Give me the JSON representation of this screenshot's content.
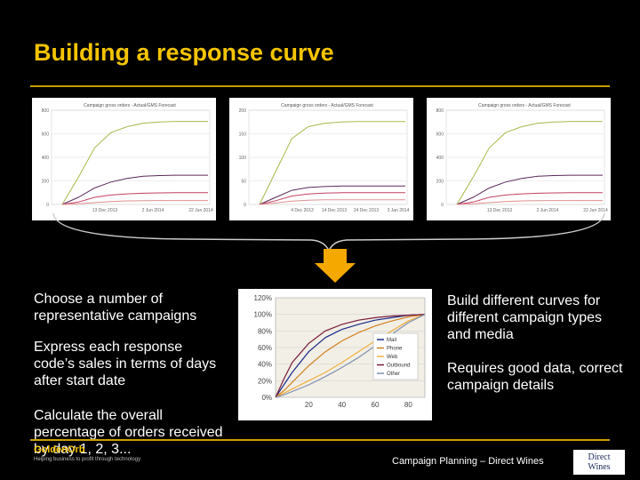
{
  "slide": {
    "title": "Building a response curve",
    "left_bullets": [
      "Choose a number of representative campaigns",
      "Express each response code’s sales in terms of days after start date",
      "Calculate the overall percentage of orders received by day 1, 2, 3..."
    ],
    "right_bullets": [
      "Build different curves for different campaign types and media",
      "Requires good data, correct campaign details"
    ],
    "footer": "Campaign Planning – Direct Wines",
    "logo_left": {
      "name": "GoldenOrb",
      "tagline": "Helping business to profit through technology"
    },
    "logo_right": {
      "line1": "Direct",
      "line2": "Wines"
    },
    "accent_color": "#F5C400",
    "arrow_color": "#F5A800"
  },
  "chart_data": [
    {
      "type": "line",
      "title": "Campaign gross orders - Actual/GMS Forecast",
      "yticks": [
        "800",
        "600",
        "400",
        "200",
        "0"
      ],
      "xticks": [
        "13 Dec 2013",
        "2 Jun 2014",
        "22 Jun 2014"
      ],
      "ylim": [
        0,
        800
      ],
      "series": [
        {
          "color": "#A8B84A",
          "values": [
            0,
            230,
            480,
            610,
            660,
            690,
            700,
            705,
            705,
            705
          ]
        },
        {
          "color": "#5A2A5A",
          "values": [
            0,
            60,
            140,
            190,
            220,
            240,
            245,
            248,
            248,
            248
          ]
        },
        {
          "color": "#C04060",
          "values": [
            0,
            20,
            60,
            80,
            90,
            95,
            98,
            100,
            100,
            100
          ]
        },
        {
          "color": "#E09090",
          "values": [
            0,
            5,
            15,
            25,
            30,
            32,
            33,
            33,
            33,
            33
          ]
        }
      ]
    },
    {
      "type": "line",
      "title": "Campaign gross orders - Actual/GMS Forecast",
      "yticks": [
        "200",
        "150",
        "100",
        "50",
        "0"
      ],
      "xticks": [
        "4 Dec 2013",
        "14 Dec 2013",
        "24 Dec 2013",
        "3 Jan 2014"
      ],
      "ylim": [
        0,
        200
      ],
      "series": [
        {
          "color": "#A8B84A",
          "values": [
            0,
            70,
            140,
            165,
            172,
            175,
            176,
            176,
            176,
            176
          ]
        },
        {
          "color": "#5A2A5A",
          "values": [
            0,
            15,
            30,
            36,
            38,
            39,
            39,
            39,
            39,
            39
          ]
        },
        {
          "color": "#C04060",
          "values": [
            0,
            8,
            18,
            22,
            24,
            25,
            25,
            25,
            25,
            25
          ]
        },
        {
          "color": "#E09090",
          "values": [
            0,
            3,
            7,
            9,
            10,
            10,
            10,
            10,
            10,
            10
          ]
        }
      ]
    },
    {
      "type": "line",
      "title": "Campaign gross orders - Actual/GMS Forecast",
      "yticks": [
        "800",
        "600",
        "400",
        "200",
        "0"
      ],
      "xticks": [
        "13 Dec 2013",
        "2 Jun 2014",
        "22 Jun 2014"
      ],
      "ylim": [
        0,
        800
      ],
      "series": [
        {
          "color": "#A8B84A",
          "values": [
            0,
            230,
            480,
            610,
            660,
            690,
            700,
            705,
            705,
            705
          ]
        },
        {
          "color": "#5A2A5A",
          "values": [
            0,
            60,
            140,
            190,
            220,
            240,
            245,
            248,
            248,
            248
          ]
        },
        {
          "color": "#C04060",
          "values": [
            0,
            20,
            60,
            80,
            90,
            95,
            98,
            100,
            100,
            100
          ]
        },
        {
          "color": "#E09090",
          "values": [
            0,
            5,
            15,
            25,
            30,
            32,
            33,
            33,
            33,
            33
          ]
        }
      ]
    },
    {
      "type": "line",
      "yticks": [
        "120%",
        "100%",
        "80%",
        "60%",
        "40%",
        "20%",
        "0%"
      ],
      "xticks": [
        "20",
        "40",
        "60",
        "80"
      ],
      "ylim": [
        0,
        120
      ],
      "xlim": [
        0,
        90
      ],
      "legend": {
        "placement": "bottom-right"
      },
      "series": [
        {
          "name": "Mail",
          "color": "#1a2a8a",
          "x": [
            0,
            5,
            10,
            20,
            30,
            40,
            50,
            60,
            70,
            80,
            90
          ],
          "values": [
            0,
            15,
            30,
            55,
            72,
            82,
            88,
            93,
            96,
            99,
            100
          ]
        },
        {
          "name": "Phone",
          "color": "#D08020",
          "x": [
            0,
            5,
            10,
            20,
            30,
            40,
            50,
            60,
            70,
            80,
            90
          ],
          "values": [
            0,
            8,
            18,
            38,
            55,
            68,
            78,
            86,
            92,
            97,
            100
          ]
        },
        {
          "name": "Web",
          "color": "#F0B040",
          "x": [
            0,
            5,
            10,
            20,
            30,
            40,
            50,
            60,
            70,
            80,
            90
          ],
          "values": [
            0,
            5,
            10,
            20,
            30,
            42,
            55,
            68,
            80,
            92,
            100
          ]
        },
        {
          "name": "Outbound",
          "color": "#7A1A3A",
          "x": [
            0,
            5,
            10,
            20,
            30,
            40,
            50,
            60,
            70,
            80,
            90
          ],
          "values": [
            0,
            22,
            42,
            65,
            80,
            88,
            93,
            96,
            98,
            99,
            100
          ]
        },
        {
          "name": "Other",
          "color": "#8090B0",
          "x": [
            0,
            5,
            10,
            20,
            30,
            40,
            50,
            60,
            70,
            80,
            90
          ],
          "values": [
            0,
            3,
            7,
            15,
            25,
            36,
            48,
            62,
            76,
            90,
            100
          ]
        }
      ]
    }
  ]
}
